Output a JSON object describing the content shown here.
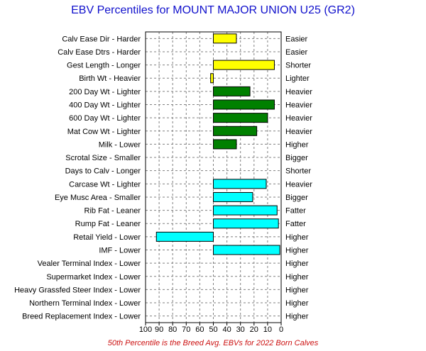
{
  "chart_data": {
    "type": "bar",
    "orientation": "horizontal",
    "title": "EBV Percentiles for MOUNT MAJOR UNION U25 (GR2)",
    "footnote": "50th Percentile is the Breed Avg. EBVs for 2022 Born Calves",
    "x_axis": {
      "reversed": true,
      "min": 0,
      "max": 100,
      "ticks": [
        100,
        90,
        80,
        70,
        60,
        50,
        40,
        30,
        20,
        10,
        0
      ]
    },
    "grid": true,
    "baseline": 50,
    "categories": [
      {
        "left": "Calv Ease Dir - Harder",
        "right": "Easier",
        "value": 33,
        "color": "#ffff00"
      },
      {
        "left": "Calv Ease Dtrs - Harder",
        "right": "Easier",
        "value": null,
        "color": "#ffff00"
      },
      {
        "left": "Gest Length - Longer",
        "right": "Shorter",
        "value": 5,
        "color": "#ffff00"
      },
      {
        "left": "Birth Wt - Heavier",
        "right": "Lighter",
        "value": 52,
        "color": "#ffff00"
      },
      {
        "left": "200 Day Wt - Lighter",
        "right": "Heavier",
        "value": 23,
        "color": "#008000"
      },
      {
        "left": "400 Day Wt - Lighter",
        "right": "Heavier",
        "value": 5,
        "color": "#008000"
      },
      {
        "left": "600 Day Wt - Lighter",
        "right": "Heavier",
        "value": 10,
        "color": "#008000"
      },
      {
        "left": "Mat Cow Wt - Lighter",
        "right": "Heavier",
        "value": 18,
        "color": "#008000"
      },
      {
        "left": "Milk - Lower",
        "right": "Higher",
        "value": 33,
        "color": "#008000"
      },
      {
        "left": "Scrotal Size - Smaller",
        "right": "Bigger",
        "value": null,
        "color": "#008000"
      },
      {
        "left": "Days to Calv - Longer",
        "right": "Shorter",
        "value": null,
        "color": "#008000"
      },
      {
        "left": "Carcase Wt - Lighter",
        "right": "Heavier",
        "value": 11,
        "color": "#00ffff"
      },
      {
        "left": "Eye Musc Area - Smaller",
        "right": "Bigger",
        "value": 21,
        "color": "#00ffff"
      },
      {
        "left": "Rib Fat - Leaner",
        "right": "Fatter",
        "value": 3,
        "color": "#00ffff"
      },
      {
        "left": "Rump Fat - Leaner",
        "right": "Fatter",
        "value": 2,
        "color": "#00ffff"
      },
      {
        "left": "Retail Yield - Lower",
        "right": "Higher",
        "value": 92,
        "color": "#00ffff"
      },
      {
        "left": "IMF - Lower",
        "right": "Higher",
        "value": 1,
        "color": "#00ffff"
      },
      {
        "left": "Vealer Terminal Index - Lower",
        "right": "Higher",
        "value": null,
        "color": "#00ffff"
      },
      {
        "left": "Supermarket Index - Lower",
        "right": "Higher",
        "value": null,
        "color": "#00ffff"
      },
      {
        "left": "Heavy Grassfed Steer Index - Lower",
        "right": "Higher",
        "value": null,
        "color": "#00ffff"
      },
      {
        "left": "Northern Terminal Index - Lower",
        "right": "Higher",
        "value": null,
        "color": "#00ffff"
      },
      {
        "left": "Breed Replacement Index - Lower",
        "right": "Higher",
        "value": null,
        "color": "#00ffff"
      }
    ]
  }
}
